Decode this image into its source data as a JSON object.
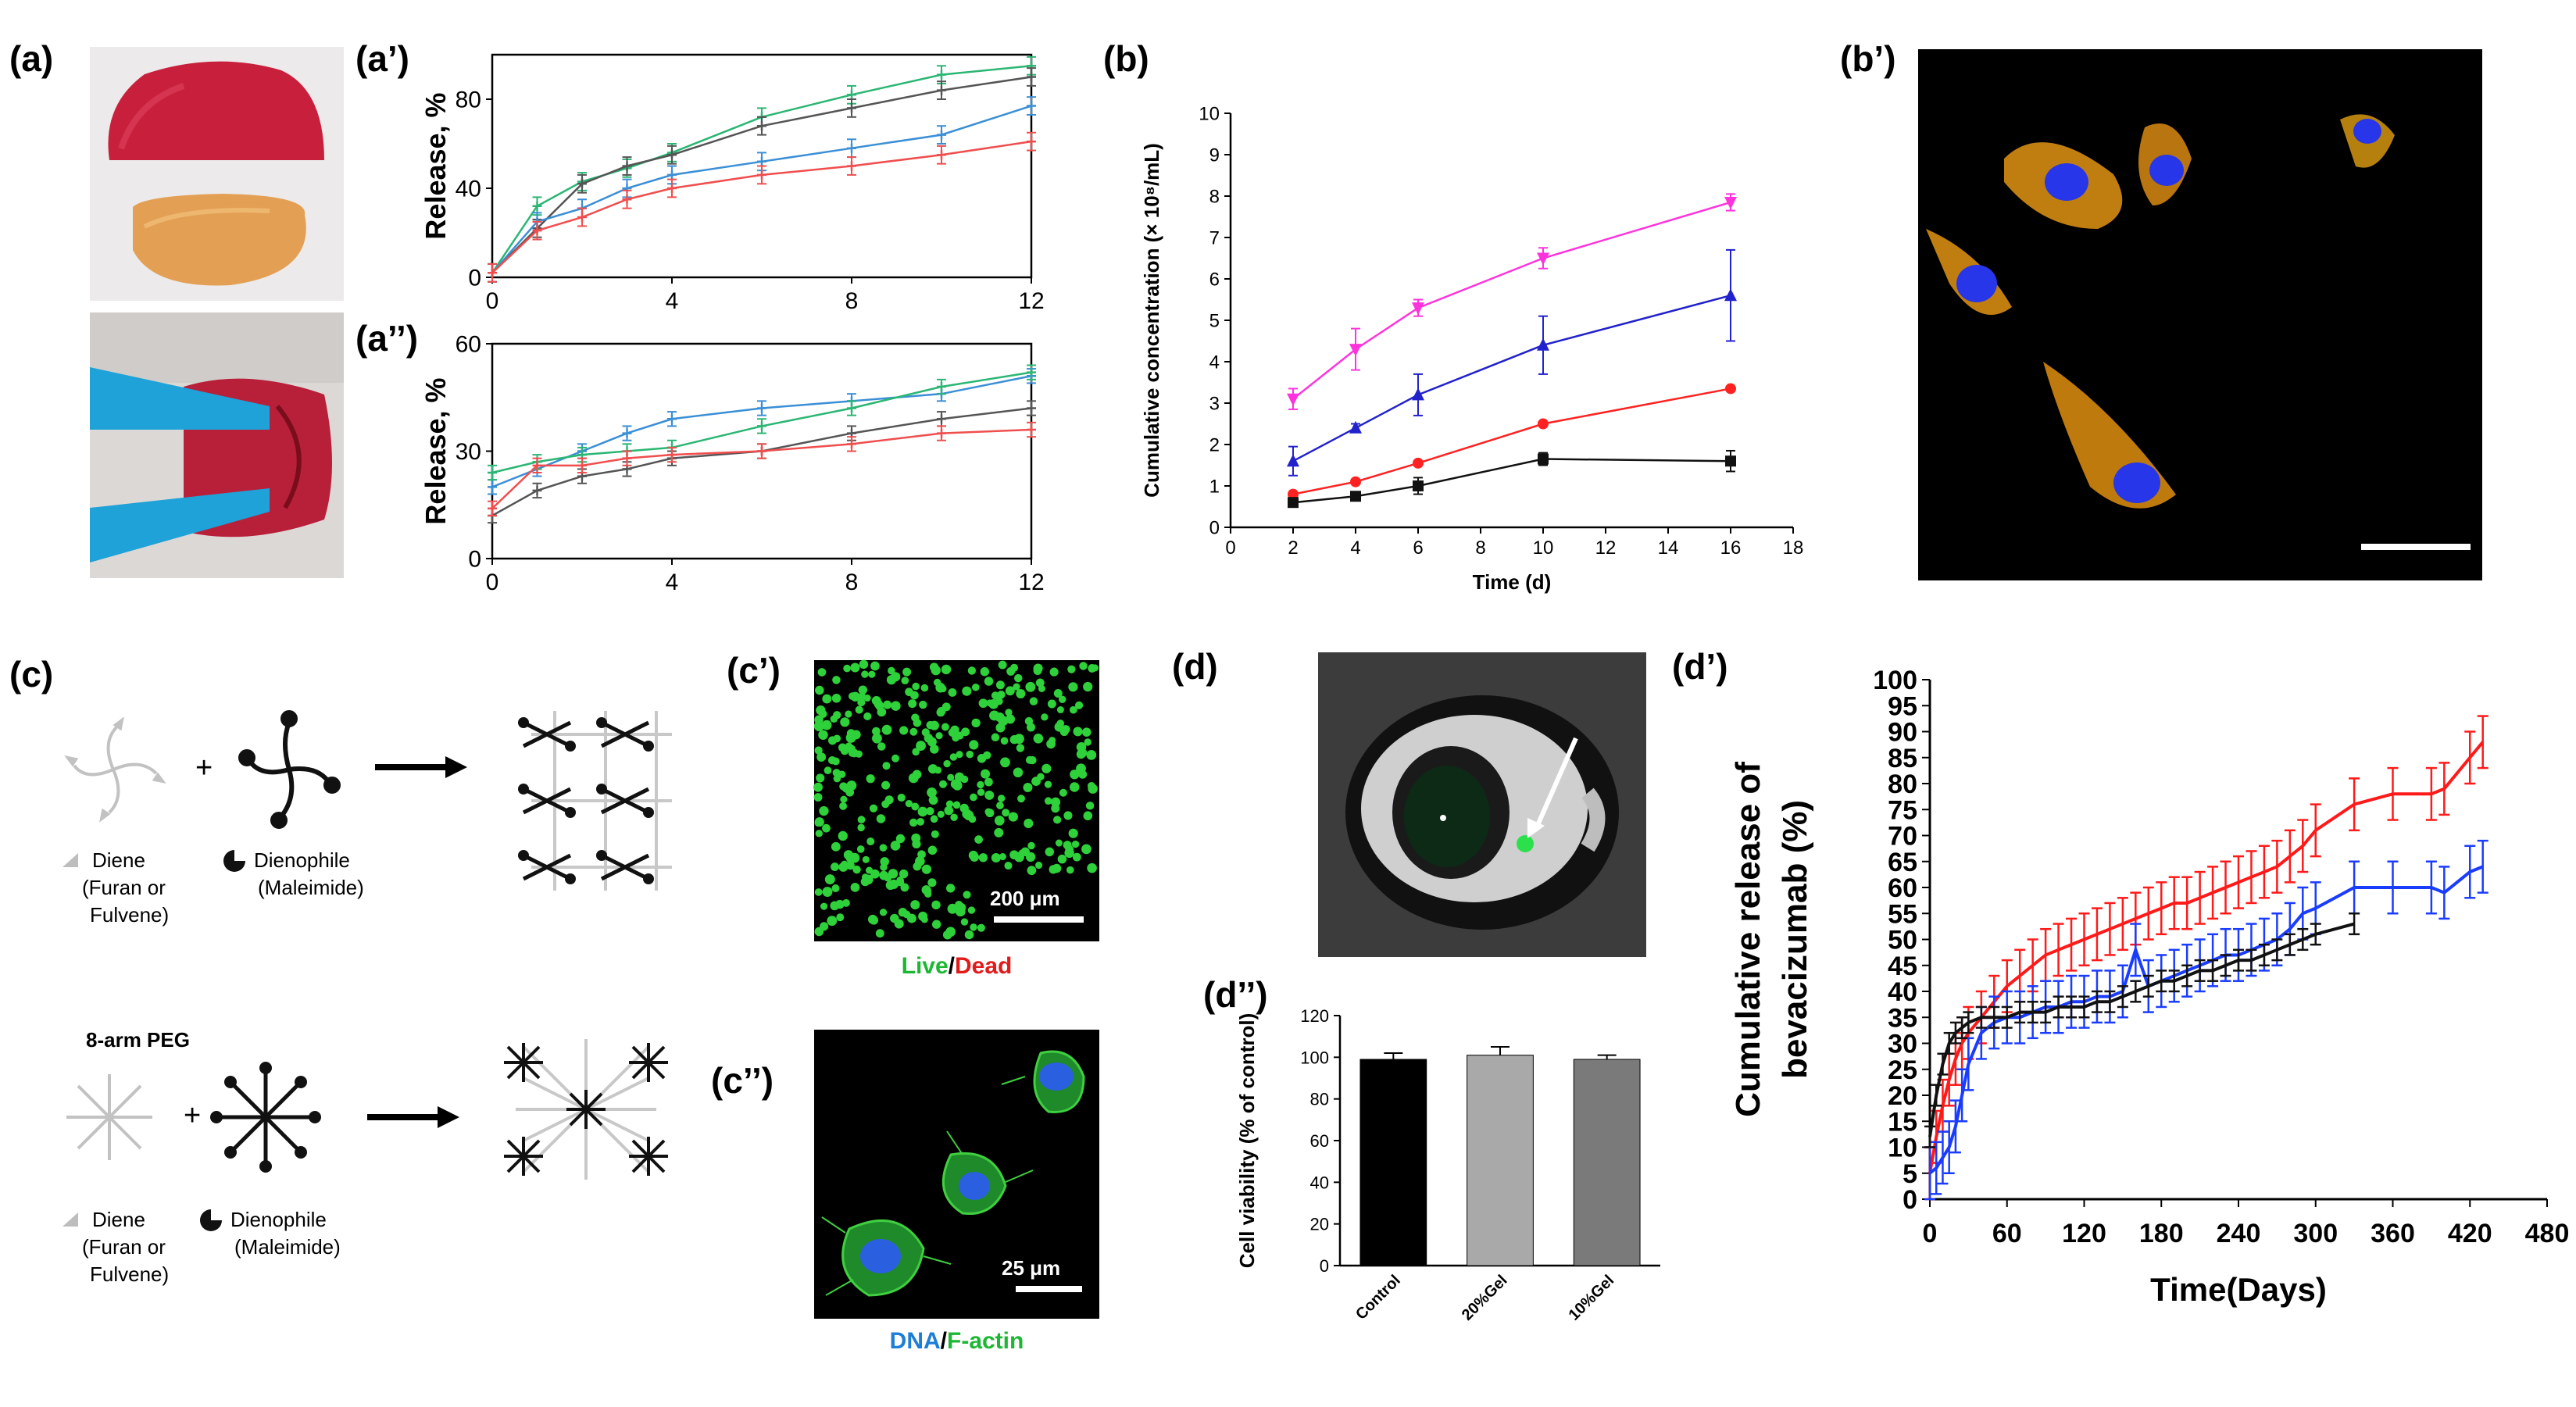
{
  "panels": {
    "a": "(a)",
    "a1": "(a’)",
    "a2": "(a’’)",
    "b": "(b)",
    "b1": "(b’)",
    "c": "(c)",
    "c1": "(c’)",
    "c2": "(c’’)",
    "d": "(d)",
    "d1": "(d’)",
    "d2": "(d’’)"
  },
  "schematic": {
    "plus": "+",
    "diene_label": "Diene",
    "diene_sub1": "(Furan or",
    "diene_sub2": "Fulvene)",
    "dienophile_label": "Dienophile",
    "dienophile_sub": "(Maleimide)",
    "peg_title": "8-arm PEG"
  },
  "images": {
    "c1_scale": "200 μm",
    "c1_caption_live": "Live",
    "c1_caption_sep": "/",
    "c1_caption_dead": "Dead",
    "c2_scale": "25 μm",
    "c2_caption_dna": "DNA",
    "c2_caption_sep": "/",
    "c2_caption_factin": "F-actin"
  },
  "colors": {
    "green": "#2bb673",
    "gray": "#555555",
    "blue": "#3a8fd6",
    "red": "#f04e4e",
    "magenta": "#ff33dd",
    "darkblue": "#2222cc",
    "bred": "#ff2222",
    "black": "#111111",
    "d_red": "#ff1a1a",
    "d_blue": "#1a3cff",
    "d_black": "#111111"
  },
  "chart_data": [
    {
      "id": "a1",
      "type": "line",
      "title": "",
      "xlabel": "",
      "ylabel": "Release, %",
      "xlim": [
        0,
        12
      ],
      "ylim": [
        0,
        100
      ],
      "xticks": [
        0,
        4,
        8,
        12
      ],
      "yticks": [
        0,
        40,
        80
      ],
      "series": [
        {
          "name": "green",
          "color": "#2bb673",
          "x": [
            0,
            1,
            2,
            3,
            4,
            6,
            8,
            10,
            12
          ],
          "y": [
            2,
            32,
            43,
            49,
            56,
            72,
            82,
            91,
            95
          ]
        },
        {
          "name": "gray",
          "color": "#555555",
          "x": [
            0,
            1,
            2,
            3,
            4,
            6,
            8,
            10,
            12
          ],
          "y": [
            2,
            22,
            42,
            50,
            55,
            68,
            76,
            84,
            90
          ]
        },
        {
          "name": "blue",
          "color": "#3a8fd6",
          "x": [
            0,
            1,
            2,
            3,
            4,
            6,
            8,
            10,
            12
          ],
          "y": [
            2,
            25,
            31,
            40,
            46,
            52,
            58,
            64,
            77
          ]
        },
        {
          "name": "red",
          "color": "#f04e4e",
          "x": [
            0,
            1,
            2,
            3,
            4,
            6,
            8,
            10,
            12
          ],
          "y": [
            2,
            21,
            27,
            35,
            40,
            46,
            50,
            55,
            61
          ]
        }
      ]
    },
    {
      "id": "a2",
      "type": "line",
      "title": "",
      "xlabel": "",
      "ylabel": "Release, %",
      "xlim": [
        0,
        12
      ],
      "ylim": [
        0,
        60
      ],
      "xticks": [
        0,
        4,
        8,
        12
      ],
      "yticks": [
        0,
        30,
        60
      ],
      "series": [
        {
          "name": "blue",
          "color": "#3a8fd6",
          "x": [
            0,
            1,
            2,
            3,
            4,
            6,
            8,
            10,
            12
          ],
          "y": [
            20,
            25,
            30,
            35,
            39,
            42,
            44,
            46,
            51
          ]
        },
        {
          "name": "green",
          "color": "#2bb673",
          "x": [
            0,
            1,
            2,
            3,
            4,
            6,
            8,
            10,
            12
          ],
          "y": [
            24,
            27,
            29,
            30,
            31,
            37,
            42,
            48,
            52
          ]
        },
        {
          "name": "gray",
          "color": "#555555",
          "x": [
            0,
            1,
            2,
            3,
            4,
            6,
            8,
            10,
            12
          ],
          "y": [
            12,
            19,
            23,
            25,
            28,
            30,
            35,
            39,
            42
          ]
        },
        {
          "name": "red",
          "color": "#f04e4e",
          "x": [
            0,
            1,
            2,
            3,
            4,
            6,
            8,
            10,
            12
          ],
          "y": [
            14,
            26,
            26,
            28,
            29,
            30,
            32,
            35,
            36
          ]
        }
      ]
    },
    {
      "id": "b",
      "type": "line",
      "title": "",
      "xlabel": "Time (d)",
      "ylabel": "Cumulative concentration (× 10⁸/mL)",
      "xlim": [
        0,
        18
      ],
      "ylim": [
        0,
        10
      ],
      "xticks": [
        0,
        2,
        4,
        6,
        8,
        10,
        12,
        14,
        16,
        18
      ],
      "yticks": [
        0,
        1,
        2,
        3,
        4,
        5,
        6,
        7,
        8,
        9,
        10
      ],
      "series": [
        {
          "name": "magenta",
          "color": "#ff33dd",
          "marker": "triangle-down",
          "x": [
            2,
            4,
            6,
            10,
            16
          ],
          "y": [
            3.1,
            4.3,
            5.3,
            6.5,
            7.85
          ],
          "err": [
            0.25,
            0.5,
            0.2,
            0.25,
            0.2
          ]
        },
        {
          "name": "blue",
          "color": "#2222cc",
          "marker": "triangle",
          "x": [
            2,
            4,
            6,
            10,
            16
          ],
          "y": [
            1.6,
            2.4,
            3.2,
            4.4,
            5.6
          ],
          "err": [
            0.35,
            0.1,
            0.5,
            0.7,
            1.1
          ]
        },
        {
          "name": "red",
          "color": "#ff2222",
          "marker": "circle",
          "x": [
            2,
            4,
            6,
            10,
            16
          ],
          "y": [
            0.8,
            1.1,
            1.55,
            2.5,
            3.35
          ],
          "err": [
            0.05,
            0.05,
            0.05,
            0.05,
            0.05
          ]
        },
        {
          "name": "black",
          "color": "#111111",
          "marker": "square",
          "x": [
            2,
            4,
            6,
            10,
            16
          ],
          "y": [
            0.6,
            0.75,
            1.0,
            1.65,
            1.6
          ],
          "err": [
            0.05,
            0.05,
            0.2,
            0.15,
            0.25
          ]
        }
      ]
    },
    {
      "id": "d2",
      "type": "bar",
      "title": "",
      "xlabel": "",
      "ylabel": "Cell viability (% of control)",
      "ylim": [
        0,
        120
      ],
      "yticks": [
        0,
        20,
        40,
        60,
        80,
        100,
        120
      ],
      "categories": [
        "Control",
        "20%Gel",
        "10%Gel"
      ],
      "values": [
        99,
        101,
        99
      ],
      "errors": [
        3,
        4,
        2
      ],
      "colors": [
        "#000000",
        "#a9a9a9",
        "#7a7a7a"
      ]
    },
    {
      "id": "d1",
      "type": "line",
      "title": "",
      "xlabel": "Time(Days)",
      "ylabel": "Cumulative release of bevacizumab (%)",
      "xlim": [
        0,
        480
      ],
      "ylim": [
        0,
        100
      ],
      "xticks": [
        0,
        60,
        120,
        180,
        240,
        300,
        360,
        420,
        480
      ],
      "yticks": [
        0,
        5,
        10,
        15,
        20,
        25,
        30,
        35,
        40,
        45,
        50,
        55,
        60,
        65,
        70,
        75,
        80,
        85,
        90,
        95,
        100
      ],
      "series": [
        {
          "name": "red",
          "color": "#ff1a1a",
          "x": [
            0,
            5,
            10,
            15,
            20,
            25,
            30,
            40,
            50,
            60,
            70,
            80,
            90,
            100,
            110,
            120,
            130,
            140,
            150,
            160,
            170,
            180,
            190,
            200,
            210,
            220,
            230,
            240,
            250,
            260,
            270,
            280,
            290,
            300,
            330,
            360,
            390,
            400,
            420,
            430
          ],
          "y": [
            5,
            12,
            18,
            23,
            27,
            30,
            32,
            35,
            38,
            41,
            43,
            45,
            47,
            48,
            49,
            50,
            51,
            52,
            53,
            54,
            55,
            56,
            57,
            57,
            58,
            59,
            60,
            61,
            62,
            63,
            64,
            66,
            68,
            71,
            76,
            78,
            78,
            79,
            85,
            88
          ],
          "err": 5
        },
        {
          "name": "blue",
          "color": "#1a3cff",
          "x": [
            0,
            5,
            10,
            15,
            20,
            25,
            30,
            40,
            50,
            60,
            70,
            80,
            90,
            100,
            110,
            120,
            130,
            140,
            150,
            160,
            170,
            180,
            190,
            200,
            210,
            220,
            230,
            240,
            250,
            260,
            270,
            280,
            290,
            300,
            330,
            360,
            390,
            400,
            420,
            430
          ],
          "y": [
            5,
            6,
            8,
            10,
            14,
            20,
            26,
            32,
            34,
            35,
            35,
            36,
            37,
            37,
            38,
            38,
            39,
            39,
            40,
            48,
            41,
            42,
            43,
            44,
            45,
            46,
            47,
            47,
            48,
            49,
            50,
            52,
            55,
            56,
            60,
            60,
            60,
            59,
            63,
            64
          ],
          "err": 5
        },
        {
          "name": "black",
          "color": "#111111",
          "x": [
            0,
            5,
            10,
            15,
            20,
            25,
            30,
            40,
            50,
            60,
            70,
            80,
            90,
            100,
            110,
            120,
            130,
            140,
            150,
            160,
            170,
            180,
            190,
            200,
            210,
            220,
            230,
            240,
            250,
            260,
            270,
            280,
            290,
            300,
            330
          ],
          "y": [
            12,
            20,
            26,
            30,
            32,
            33,
            34,
            35,
            35,
            35,
            36,
            36,
            36,
            37,
            37,
            37,
            38,
            38,
            39,
            40,
            41,
            42,
            42,
            43,
            44,
            44,
            45,
            46,
            46,
            47,
            48,
            49,
            50,
            51,
            53
          ],
          "err": 2
        }
      ]
    }
  ]
}
